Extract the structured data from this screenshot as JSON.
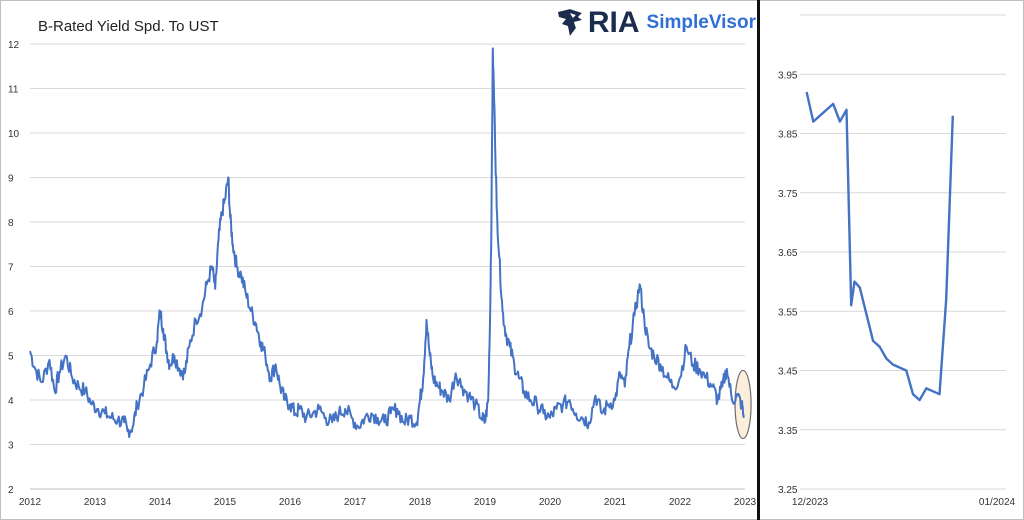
{
  "colors": {
    "series": "#4472C4",
    "grid": "#d9d9d9",
    "axis_text": "#333333",
    "highlight_fill": "#fbefdc",
    "highlight_stroke": "#6d6d6d"
  },
  "logo": {
    "brand": "RIA",
    "product": "SimpleVisor",
    "icon": "eagle-icon"
  },
  "chart_data": [
    {
      "type": "line",
      "title": "B-Rated Yield Spd. To UST",
      "xlim": [
        2012,
        2023
      ],
      "ylim": [
        2,
        12
      ],
      "x_ticks": [
        "2012",
        "2013",
        "2014",
        "2015",
        "2016",
        "2017",
        "2018",
        "2019",
        "2020",
        "2021",
        "2022",
        "2023"
      ],
      "y_ticks": [
        2,
        3,
        4,
        5,
        6,
        7,
        8,
        9,
        10,
        11,
        12
      ],
      "grid": true,
      "series": [
        {
          "x": [
            2012.0,
            2012.08,
            2012.18,
            2012.3,
            2012.38,
            2012.45,
            2012.55,
            2012.65,
            2012.75,
            2012.85,
            2012.95,
            2013.05,
            2013.15,
            2013.25,
            2013.35,
            2013.45,
            2013.5,
            2013.58,
            2013.65,
            2013.75,
            2013.85,
            2013.95,
            2014.0,
            2014.05,
            2014.1,
            2014.15,
            2014.22,
            2014.3,
            2014.38,
            2014.45,
            2014.55,
            2014.65,
            2014.72,
            2014.8,
            2014.85,
            2014.9,
            2014.95,
            2015.0,
            2015.05,
            2015.08,
            2015.12,
            2015.18,
            2015.25,
            2015.32,
            2015.4,
            2015.48,
            2015.55,
            2015.62,
            2015.7,
            2015.78,
            2015.85,
            2015.92,
            2016.0,
            2016.08,
            2016.15,
            2016.25,
            2016.35,
            2016.45,
            2016.55,
            2016.65,
            2016.75,
            2016.85,
            2016.95,
            2017.05,
            2017.15,
            2017.25,
            2017.35,
            2017.45,
            2017.55,
            2017.65,
            2017.75,
            2017.85,
            2017.95,
            2018.0,
            2018.05,
            2018.1,
            2018.15,
            2018.2,
            2018.28,
            2018.35,
            2018.45,
            2018.55,
            2018.65,
            2018.75,
            2018.85,
            2018.95,
            2019.0,
            2019.05,
            2019.08,
            2019.1,
            2019.12,
            2019.15,
            2019.18,
            2019.22,
            2019.27,
            2019.32,
            2019.38,
            2019.45,
            2019.52,
            2019.6,
            2019.7,
            2019.8,
            2019.9,
            2020.0,
            2020.1,
            2020.2,
            2020.3,
            2020.4,
            2020.5,
            2020.6,
            2020.7,
            2020.8,
            2020.9,
            2021.0,
            2021.08,
            2021.15,
            2021.22,
            2021.3,
            2021.38,
            2021.45,
            2021.52,
            2021.6,
            2021.7,
            2021.8,
            2021.9,
            2022.0,
            2022.1,
            2022.2,
            2022.3,
            2022.4,
            2022.5,
            2022.58,
            2022.65,
            2022.72,
            2022.8,
            2022.88,
            2022.95,
            2022.98
          ],
          "y": [
            5.1,
            4.7,
            4.4,
            4.9,
            4.2,
            4.6,
            5.0,
            4.5,
            4.3,
            4.2,
            3.9,
            3.8,
            3.7,
            3.6,
            3.55,
            3.5,
            3.3,
            3.4,
            3.9,
            4.3,
            4.8,
            5.3,
            6.0,
            5.6,
            5.1,
            4.8,
            5.0,
            4.7,
            4.6,
            5.2,
            5.8,
            6.1,
            6.6,
            7.0,
            6.5,
            7.6,
            8.2,
            8.5,
            9.0,
            8.1,
            7.5,
            7.0,
            6.8,
            6.4,
            6.0,
            5.7,
            5.3,
            5.0,
            4.5,
            4.8,
            4.3,
            4.0,
            3.9,
            3.7,
            3.8,
            3.6,
            3.7,
            3.8,
            3.6,
            3.5,
            3.7,
            3.8,
            3.6,
            3.4,
            3.6,
            3.7,
            3.6,
            3.5,
            3.7,
            3.8,
            3.5,
            3.6,
            3.5,
            4.0,
            4.5,
            5.8,
            5.0,
            4.5,
            4.3,
            4.2,
            4.0,
            4.6,
            4.3,
            4.1,
            3.9,
            3.6,
            3.5,
            4.0,
            6.0,
            8.2,
            11.9,
            10.2,
            8.3,
            7.2,
            6.0,
            5.5,
            5.2,
            4.8,
            4.5,
            4.2,
            4.0,
            3.9,
            3.7,
            3.6,
            3.8,
            3.9,
            4.0,
            3.7,
            3.6,
            3.5,
            4.1,
            3.7,
            3.9,
            4.0,
            4.6,
            4.3,
            5.2,
            5.9,
            6.6,
            5.8,
            5.2,
            5.0,
            4.8,
            4.5,
            4.3,
            4.5,
            5.2,
            4.8,
            4.7,
            4.5,
            4.3,
            4.0,
            4.3,
            4.7,
            4.0,
            4.1,
            3.9,
            3.6
          ]
        }
      ]
    },
    {
      "type": "line",
      "xlim": [
        0,
        31
      ],
      "ylim": [
        3.25,
        4.05
      ],
      "x_ticks": [
        "12/2023",
        "01/2024"
      ],
      "y_ticks": [
        3.25,
        3.35,
        3.45,
        3.55,
        3.65,
        3.75,
        3.85,
        3.95
      ],
      "grid": true,
      "series": [
        {
          "x": [
            1,
            2,
            3,
            5,
            6,
            7,
            7.7,
            8.2,
            9,
            11,
            12,
            13,
            14,
            16,
            17,
            18,
            19,
            21
          ],
          "y": [
            3.92,
            3.87,
            3.88,
            3.9,
            3.87,
            3.89,
            3.56,
            3.6,
            3.59,
            3.5,
            3.49,
            3.47,
            3.46,
            3.45,
            3.41,
            3.4,
            3.42,
            3.41
          ],
          "tail": {
            "x": [
              22,
              23
            ],
            "y": [
              3.57,
              3.88
            ]
          }
        }
      ]
    }
  ]
}
